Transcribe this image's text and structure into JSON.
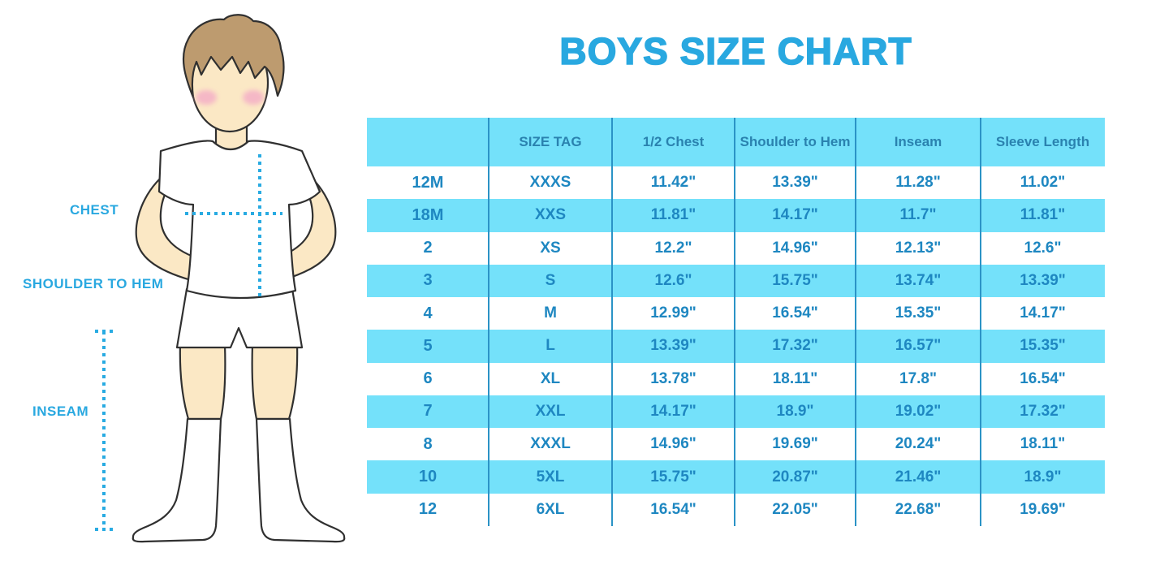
{
  "title": "BOYS SIZE CHART",
  "figure": {
    "labels": {
      "chest": "CHEST",
      "shoulder_to_hem": "SHOULDER TO HEM",
      "inseam": "INSEAM"
    }
  },
  "colors": {
    "title_blue": "#29A8E0",
    "dotted_line_blue": "#29ABE2",
    "table_fill_cyan": "#74E1FA",
    "table_value_text": "#1E87C1",
    "table_header_text": "#2A82AF",
    "column_line": "#2B93C6",
    "skin": "#FBE8C5",
    "hair_brown": "#BD9B6F",
    "blush_pink": "#F5B8C6",
    "outline": "#303030"
  },
  "chart_data": {
    "type": "table",
    "title": "BOYS SIZE CHART",
    "columns": [
      "",
      "SIZE TAG",
      "1/2 Chest",
      "Shoulder to Hem",
      "Inseam",
      "Sleeve Length"
    ],
    "rows": [
      [
        "12M",
        "XXXS",
        "11.42\"",
        "13.39\"",
        "11.28\"",
        "11.02\""
      ],
      [
        "18M",
        "XXS",
        "11.81\"",
        "14.17\"",
        "11.7\"",
        "11.81\""
      ],
      [
        "2",
        "XS",
        "12.2\"",
        "14.96\"",
        "12.13\"",
        "12.6\""
      ],
      [
        "3",
        "S",
        "12.6\"",
        "15.75\"",
        "13.74\"",
        "13.39\""
      ],
      [
        "4",
        "M",
        "12.99\"",
        "16.54\"",
        "15.35\"",
        "14.17\""
      ],
      [
        "5",
        "L",
        "13.39\"",
        "17.32\"",
        "16.57\"",
        "15.35\""
      ],
      [
        "6",
        "XL",
        "13.78\"",
        "18.11\"",
        "17.8\"",
        "16.54\""
      ],
      [
        "7",
        "XXL",
        "14.17\"",
        "18.9\"",
        "19.02\"",
        "17.32\""
      ],
      [
        "8",
        "XXXL",
        "14.96\"",
        "19.69\"",
        "20.24\"",
        "18.11\""
      ],
      [
        "10",
        "5XL",
        "15.75\"",
        "20.87\"",
        "21.46\"",
        "18.9\""
      ],
      [
        "12",
        "6XL",
        "16.54\"",
        "22.05\"",
        "22.68\"",
        "19.69\""
      ]
    ],
    "row_fill_pattern": "header cyan, then rows alternate white/cyan starting white",
    "grid": "vertical column dividers only, no outer border"
  }
}
